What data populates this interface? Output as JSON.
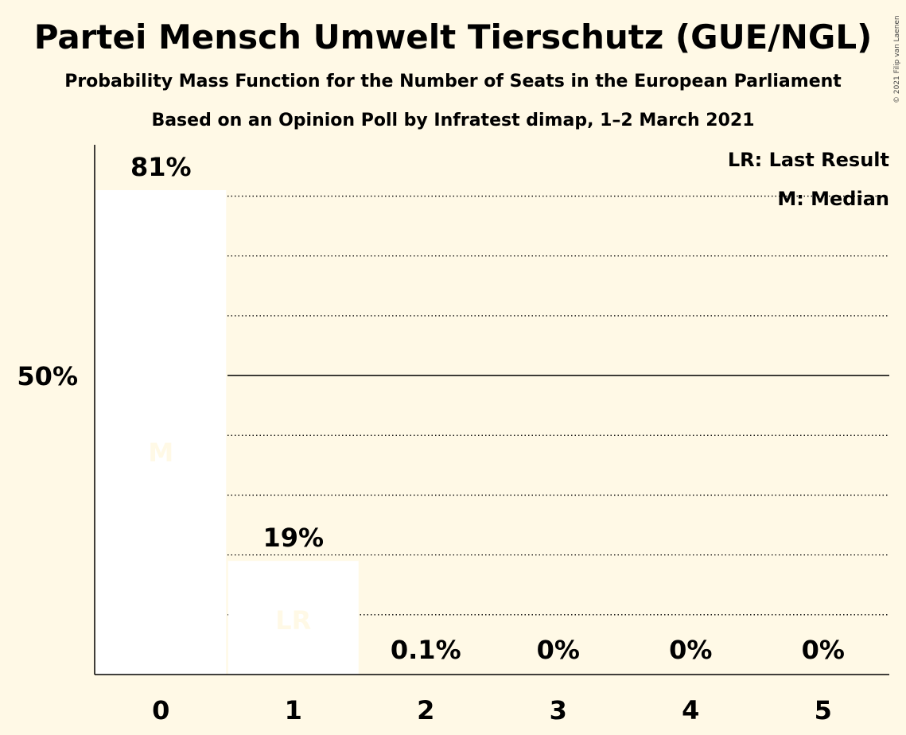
{
  "header": {
    "title": "Partei Mensch Umwelt Tierschutz (GUE/NGL)",
    "subtitle": "Probability Mass Function for the Number of Seats in the European Parliament",
    "subtitle2": "Based on an Opinion Poll by Infratest dimap, 1–2 March 2021",
    "copyright": "© 2021 Filip van Laenen"
  },
  "chart_data": {
    "type": "bar",
    "categories": [
      "0",
      "1",
      "2",
      "3",
      "4",
      "5"
    ],
    "values": [
      81,
      19,
      0.1,
      0,
      0,
      0
    ],
    "value_labels": [
      "81%",
      "19%",
      "0.1%",
      "0%",
      "0%",
      "0%"
    ],
    "ylim": [
      0,
      90
    ],
    "y_tick_label": "50%",
    "y_tick_value": 50,
    "gridlines": [
      10,
      20,
      30,
      40,
      60,
      70,
      80
    ],
    "bar_color": "#ffffff",
    "bar_marker_color": "#fff9e6",
    "markers": [
      {
        "category": "0",
        "label": "M"
      },
      {
        "category": "1",
        "label": "LR"
      }
    ],
    "legend": {
      "position": "top-right",
      "items": [
        "LR: Last Result",
        "M: Median"
      ]
    }
  }
}
